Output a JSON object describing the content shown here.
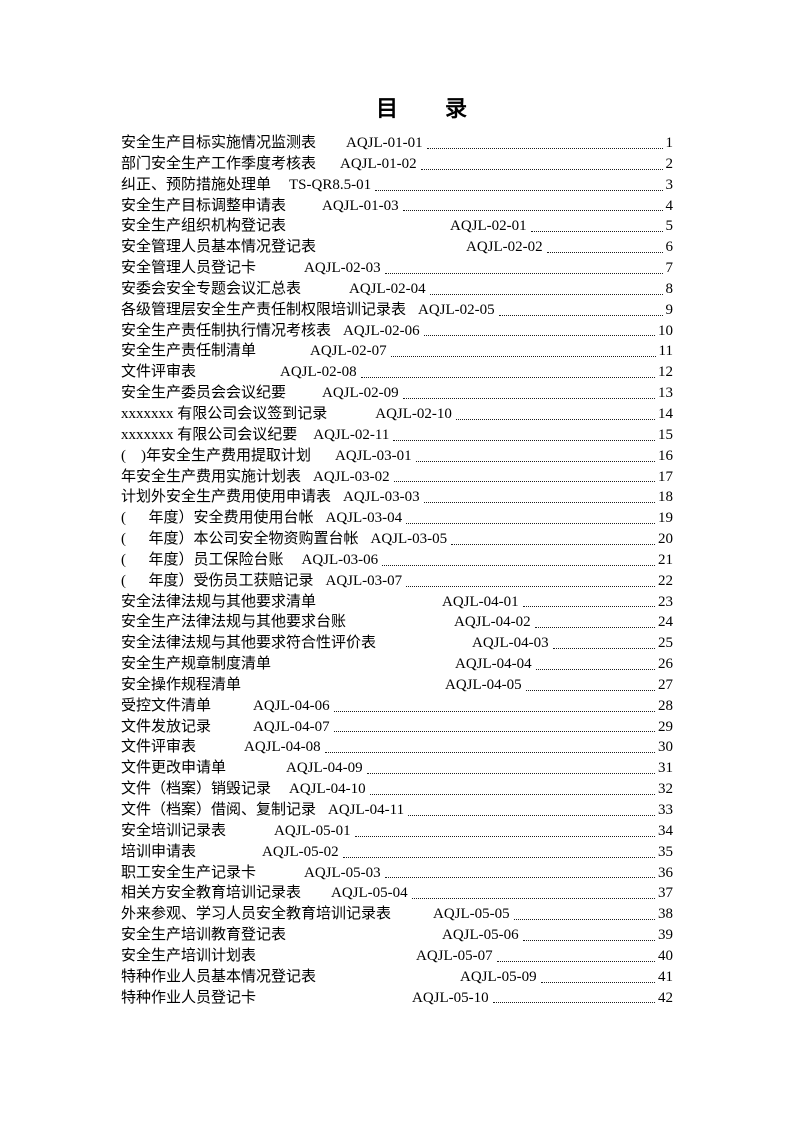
{
  "doc": {
    "title": "目　　录"
  },
  "toc": {
    "entries": [
      {
        "title": "安全生产目标实施情况监测表",
        "code": "AQJL-01-01",
        "page": "1"
      },
      {
        "title": "部门安全生产工作季度考核表",
        "code": "AQJL-01-02",
        "page": "2"
      },
      {
        "title": "纠正、预防措施处理单",
        "code": "TS-QR8.5-01",
        "page": "3"
      },
      {
        "title": "安全生产目标调整申请表",
        "code": "AQJL-01-03",
        "page": "4"
      },
      {
        "title": "安全生产组织机构登记表",
        "code": "AQJL-02-01",
        "page": "5"
      },
      {
        "title": "安全管理人员基本情况登记表",
        "code": "AQJL-02-02",
        "page": "6"
      },
      {
        "title": "安全管理人员登记卡",
        "code": "AQJL-02-03",
        "page": "7"
      },
      {
        "title": "安委会安全专题会议汇总表",
        "code": "AQJL-02-04",
        "page": "8"
      },
      {
        "title": "各级管理层安全生产责任制权限培训记录表",
        "code": "AQJL-02-05",
        "page": "9"
      },
      {
        "title": "安全生产责任制执行情况考核表",
        "code": "AQJL-02-06",
        "page": "10"
      },
      {
        "title": "安全生产责任制清单",
        "code": "AQJL-02-07",
        "page": "11"
      },
      {
        "title": "文件评审表",
        "code": "AQJL-02-08",
        "page": "12"
      },
      {
        "title": "安全生产委员会会议纪要",
        "code": "AQJL-02-09",
        "page": "13"
      },
      {
        "title": "xxxxxxx 有限公司会议签到记录",
        "code": "AQJL-02-10",
        "page": "14"
      },
      {
        "title": "xxxxxxx 有限公司会议纪要",
        "code": "AQJL-02-11",
        "page": "15"
      },
      {
        "title": "(    )年安全生产费用提取计划",
        "code": "AQJL-03-01",
        "page": "16"
      },
      {
        "title": "年安全生产费用实施计划表",
        "code": "AQJL-03-02",
        "page": "17"
      },
      {
        "title": "计划外安全生产费用使用申请表",
        "code": "AQJL-03-03",
        "page": "18"
      },
      {
        "title": "(      年度）安全费用使用台帐",
        "code": "AQJL-03-04",
        "page": "19"
      },
      {
        "title": "(      年度）本公司安全物资购置台帐",
        "code": "AQJL-03-05",
        "page": "20"
      },
      {
        "title": "(      年度）员工保险台账",
        "code": "AQJL-03-06",
        "page": "21"
      },
      {
        "title": "(      年度）受伤员工获赔记录",
        "code": "AQJL-03-07",
        "page": "22"
      },
      {
        "title": "安全法律法规与其他要求清单",
        "code": "AQJL-04-01",
        "page": "23"
      },
      {
        "title": "安全生产法律法规与其他要求台账",
        "code": "AQJL-04-02",
        "page": "24"
      },
      {
        "title": "安全法律法规与其他要求符合性评价表",
        "code": "AQJL-04-03",
        "page": "25"
      },
      {
        "title": "安全生产规章制度清单",
        "code": "AQJL-04-04",
        "page": "26"
      },
      {
        "title": "安全操作规程清单",
        "code": "AQJL-04-05",
        "page": "27"
      },
      {
        "title": "受控文件清单",
        "code": "AQJL-04-06",
        "page": "28"
      },
      {
        "title": "文件发放记录",
        "code": "AQJL-04-07",
        "page": "29"
      },
      {
        "title": "文件评审表",
        "code": "AQJL-04-08",
        "page": "30"
      },
      {
        "title": "文件更改申请单",
        "code": "AQJL-04-09",
        "page": "31"
      },
      {
        "title": "文件（档案）销毁记录",
        "code": "AQJL-04-10",
        "page": "32"
      },
      {
        "title": "文件（档案）借阅、复制记录",
        "code": "AQJL-04-11",
        "page": "33"
      },
      {
        "title": "安全培训记录表",
        "code": "AQJL-05-01",
        "page": "34"
      },
      {
        "title": "培训申请表",
        "code": "AQJL-05-02",
        "page": "35"
      },
      {
        "title": "职工安全生产记录卡",
        "code": "AQJL-05-03",
        "page": "36"
      },
      {
        "title": "相关方安全教育培训记录表",
        "code": "AQJL-05-04",
        "page": "37"
      },
      {
        "title": "外来参观、学习人员安全教育培训记录表",
        "code": "AQJL-05-05",
        "page": "38"
      },
      {
        "title": "安全生产培训教育登记表",
        "code": "AQJL-05-06",
        "page": "39"
      },
      {
        "title": "安全生产培训计划表",
        "code": "AQJL-05-07",
        "page": "40"
      },
      {
        "title": "特种作业人员基本情况登记表",
        "code": "AQJL-05-09",
        "page": "41"
      },
      {
        "title": "特种作业人员登记卡",
        "code": "AQJL-05-10",
        "page": "42"
      }
    ]
  }
}
